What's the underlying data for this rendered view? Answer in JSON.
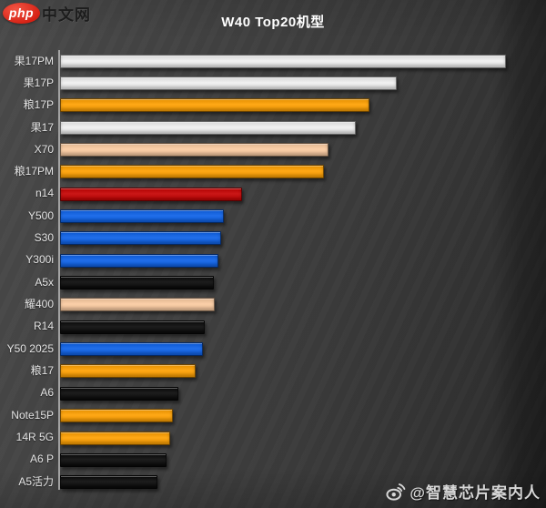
{
  "logo": {
    "brand": "php",
    "suffix": "中文网"
  },
  "header": {
    "title": "W40 Top20机型"
  },
  "watermark": {
    "icon": "weibo-icon",
    "text": "@智慧芯片案内人"
  },
  "colors": {
    "background": "#3e3e3e",
    "title_text": "#ffffff",
    "label_text": "#e3e3e3",
    "axis_line": "#b5b5b5",
    "watermark_text": "#d6d6d6",
    "logo_red": "#d51f12",
    "white_bar": "#f0f0f0",
    "orange_bar": "#ffa102",
    "peach_bar": "#fbcba1",
    "red_bar": "#c60303",
    "blue_bar": "#0e62e8",
    "black_bar": "#0a0a0a"
  },
  "chart_data": {
    "type": "bar",
    "orientation": "horizontal",
    "title": "W40 Top20机型",
    "categories": [
      "果17PM",
      "果17P",
      "粮17P",
      "果17",
      "X70",
      "粮17PM",
      "n14",
      "Y500",
      "S30",
      "Y300i",
      "A5x",
      "耀400",
      "R14",
      "Y50 2025",
      "粮17",
      "A6",
      "Note15P",
      "14R 5G",
      "A6 P",
      "A5活力"
    ],
    "values": [
      100,
      75.4,
      69.3,
      66.2,
      60.0,
      59.0,
      40.6,
      36.5,
      35.9,
      35.2,
      34.2,
      34.4,
      32.2,
      31.8,
      30.1,
      26.2,
      25.0,
      24.4,
      23.6,
      21.5
    ],
    "bar_colors": [
      "#f0f0f0",
      "#f0f0f0",
      "#ffa102",
      "#f0f0f0",
      "#fbcba1",
      "#ffa102",
      "#c60303",
      "#0e62e8",
      "#0e62e8",
      "#0e62e8",
      "#0a0a0a",
      "#fbcba1",
      "#0a0a0a",
      "#0e62e8",
      "#ffa102",
      "#0a0a0a",
      "#ffa102",
      "#ffa102",
      "#0a0a0a",
      "#0a0a0a"
    ],
    "xlabel": "",
    "ylabel": "",
    "xlim": [
      0,
      100
    ],
    "axis_tick_labels_shown": false,
    "grid": false,
    "legend": "none",
    "note": "No numeric axis labels are visible; values are relative bar lengths normalized so the longest bar (果17PM) = 100."
  }
}
